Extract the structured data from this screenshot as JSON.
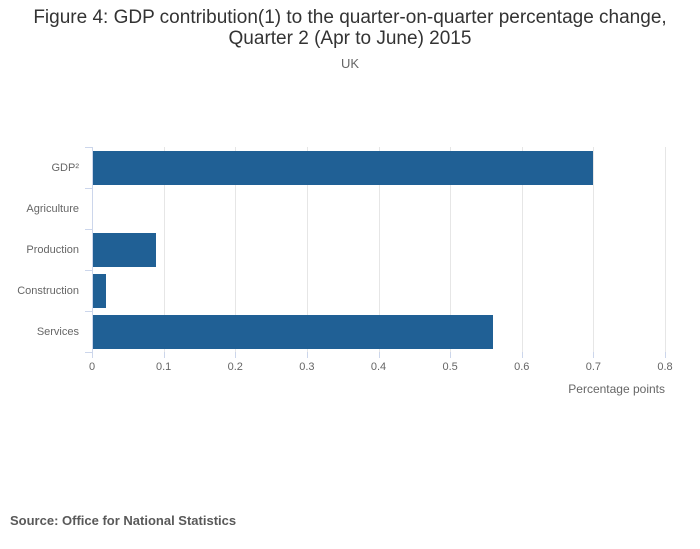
{
  "header": {
    "title_line1": "Figure 4: GDP contribution(1) to the quarter-on-quarter percentage change,",
    "title_line2": "Quarter 2 (Apr to June) 2015",
    "subtitle": "UK"
  },
  "chart_data": {
    "type": "bar",
    "orientation": "horizontal",
    "title": "Figure 4: GDP contribution(1) to the quarter-on-quarter percentage change, Quarter 2 (Apr to June) 2015",
    "subtitle": "UK",
    "categories": [
      "GDP²",
      "Agriculture",
      "Production",
      "Construction",
      "Services"
    ],
    "values": [
      0.7,
      0,
      0.09,
      0.02,
      0.56
    ],
    "xlabel": "Percentage points",
    "ylabel": "",
    "xlim": [
      0,
      0.8
    ],
    "xticks": [
      0,
      0.1,
      0.2,
      0.3,
      0.4,
      0.5,
      0.6,
      0.7,
      0.8
    ],
    "xtick_labels": [
      "0",
      "0.1",
      "0.2",
      "0.3",
      "0.4",
      "0.5",
      "0.6",
      "0.7",
      "0.8"
    ],
    "grid": true,
    "legend": false,
    "bar_color": "#206095"
  },
  "colors": {
    "bar": "#206095",
    "title_text": "#333333",
    "axis_text": "#666666",
    "gridline": "#e6e6e6",
    "axis_line": "#ccd6eb",
    "source_text": "#595959",
    "background": "#ffffff"
  },
  "footer": {
    "source": "Source: Office for National Statistics"
  }
}
